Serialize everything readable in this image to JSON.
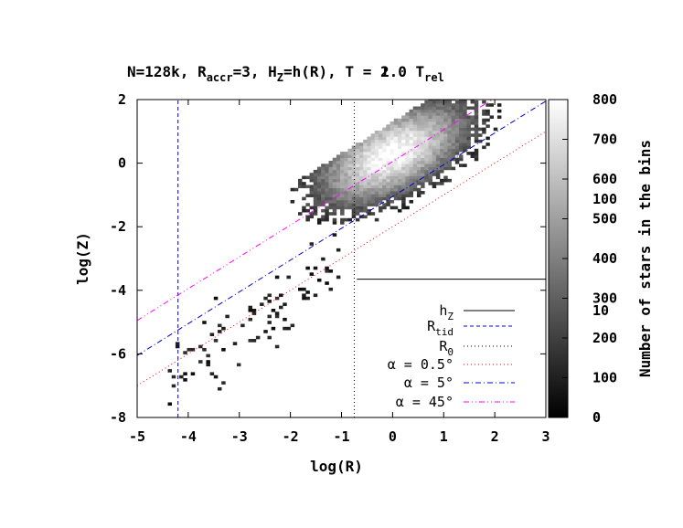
{
  "title": {
    "main": "N=128k, R",
    "sub1": "accr",
    "mid1": "=3, H",
    "sub2": "Z",
    "mid2": "=h(R), T = ",
    "overprint": [
      "1",
      "2"
    ],
    "tail": ".0 T",
    "sub3": "rel"
  },
  "chart_data": {
    "type": "heatmap",
    "xlabel": "log(R)",
    "ylabel": "log(Z)",
    "xlim": [
      -5,
      3
    ],
    "ylim": [
      -8,
      2
    ],
    "xticks": [
      "-5",
      "-4",
      "-3",
      "-2",
      "-1",
      "0",
      "1",
      "2",
      "3"
    ],
    "yticks": [
      "-8",
      "-6",
      "-4",
      "-2",
      "0",
      "2"
    ],
    "colorbar": {
      "label": "Number of stars in the bins",
      "range": [
        0,
        800
      ],
      "ticks": [
        "0",
        "100",
        "200",
        "300",
        "400",
        "500",
        "600",
        "700",
        "800"
      ],
      "overlay_ticks": [
        "0",
        "10",
        "100"
      ],
      "colormap": "gray"
    },
    "density_model": {
      "center": [
        0.0,
        0.3
      ],
      "ridge_slope": 1.2,
      "sigma_along": 1.05,
      "sigma_across": 0.55,
      "peak": 800,
      "upper_limit_line": {
        "slope": 1.0,
        "intercept": 1.3
      },
      "lower_cutoff": -3.7
    },
    "lines": [
      {
        "name": "h",
        "name_sub": "Z",
        "type": "horizontal",
        "y": -3.65,
        "x_from": -0.7,
        "x_to": 3,
        "color": "#000000",
        "style": "solid"
      },
      {
        "name": "R",
        "name_sub": "tid",
        "type": "vertical",
        "x": -4.2,
        "color": "#0000cc",
        "style": "dashed"
      },
      {
        "name": "R",
        "name_sub": "0",
        "type": "vertical",
        "x": -0.75,
        "color": "#000000",
        "style": "dotted"
      },
      {
        "name": "α = 0.5°",
        "type": "diagonal",
        "slope": 1.0,
        "intercept": -2.0,
        "color": "#ff0000",
        "style": "dotted"
      },
      {
        "name": "α = 5°",
        "type": "diagonal",
        "slope": 1.0,
        "intercept": -1.05,
        "color": "#0000cc",
        "style": "dashdot"
      },
      {
        "name": "α = 45°",
        "type": "diagonal",
        "slope": 1.0,
        "intercept": 0.05,
        "color": "#ff00ff",
        "style": "dashdotdot"
      }
    ],
    "grid": false,
    "legend_position": "bottom-right"
  }
}
